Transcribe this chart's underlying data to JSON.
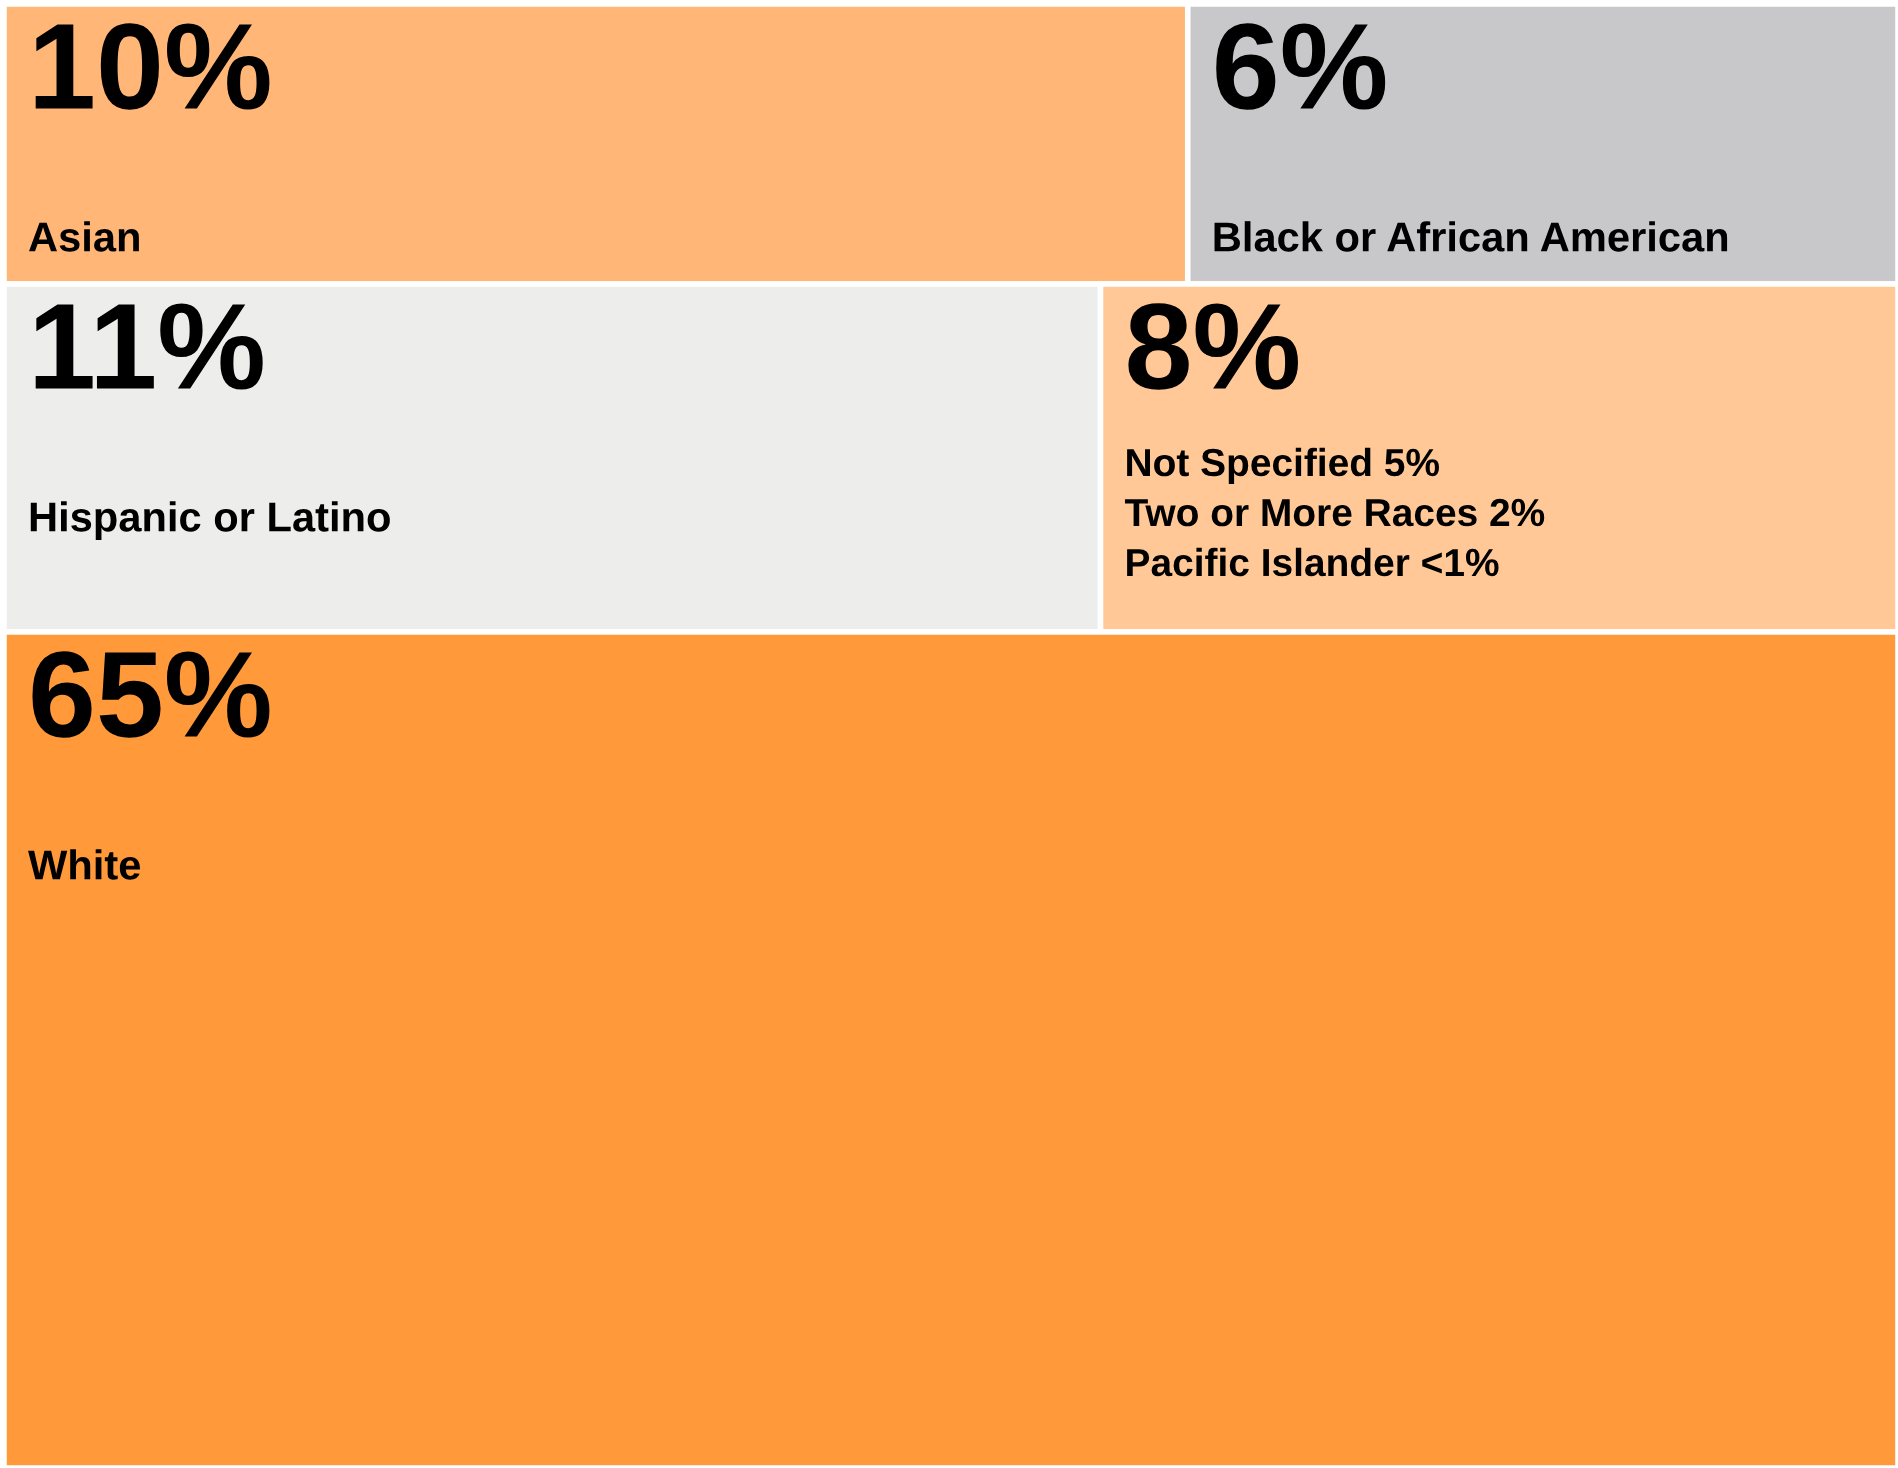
{
  "chart_data": {
    "type": "other",
    "categories": [
      "Asian",
      "Black or African American",
      "Hispanic or Latino",
      null,
      "White"
    ],
    "values": [
      10,
      6,
      11,
      8,
      65
    ],
    "value_labels": [
      "10%",
      "6%",
      "11%",
      "8%",
      "65%"
    ],
    "colors": [
      "#ffb677",
      "#c8c8ca",
      "#ededeb",
      "#ffc896",
      "#ff993a"
    ],
    "annotations": [
      "Not Specified 5%",
      "Two or More Races 2%",
      "Pacific Islander <1%"
    ]
  }
}
